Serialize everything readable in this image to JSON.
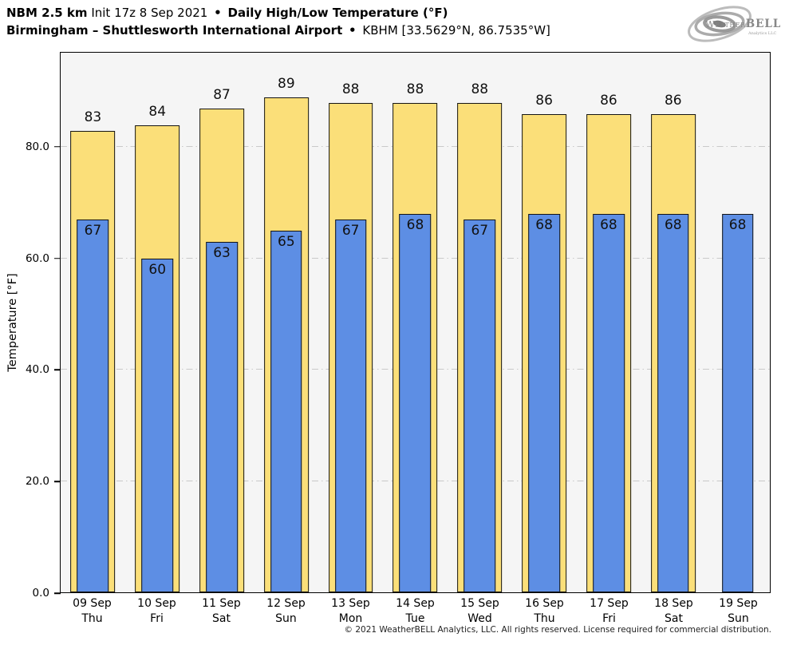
{
  "header": {
    "model": "NBM 2.5 km",
    "init": "Init 17z 8 Sep 2021",
    "separator": "•",
    "metric": "Daily High/Low Temperature (°F)",
    "location": "Birmingham – Shuttlesworth International Airport",
    "station": "KBHM [33.5629°N, 86.7535°W]"
  },
  "logo": {
    "brand_weather": "Weather",
    "brand_bell": "BELL",
    "subtext": "Analytics LLC"
  },
  "chart_data": {
    "type": "bar",
    "title": "NBM 2.5 km Init 17z 8 Sep 2021 • Daily High/Low Temperature (°F)",
    "subtitle": "Birmingham – Shuttlesworth International Airport • KBHM [33.5629°N, 86.7535°W]",
    "xlabel": "",
    "ylabel": "Temperature [°F]",
    "ylim": [
      0,
      97
    ],
    "y_ticks": [
      0,
      20,
      40,
      60,
      80
    ],
    "y_tick_labels": [
      "0.0",
      "20.0",
      "40.0",
      "60.0",
      "80.0"
    ],
    "grid": "dash-dot horizontal at major ticks",
    "legend": "none (values labeled on bars)",
    "categories": [
      {
        "date": "09 Sep",
        "day": "Thu"
      },
      {
        "date": "10 Sep",
        "day": "Fri"
      },
      {
        "date": "11 Sep",
        "day": "Sat"
      },
      {
        "date": "12 Sep",
        "day": "Sun"
      },
      {
        "date": "13 Sep",
        "day": "Mon"
      },
      {
        "date": "14 Sep",
        "day": "Tue"
      },
      {
        "date": "15 Sep",
        "day": "Wed"
      },
      {
        "date": "16 Sep",
        "day": "Thu"
      },
      {
        "date": "17 Sep",
        "day": "Fri"
      },
      {
        "date": "18 Sep",
        "day": "Sat"
      },
      {
        "date": "19 Sep",
        "day": "Sun"
      }
    ],
    "series": [
      {
        "name": "Daily High",
        "color": "#FBDF79",
        "values": [
          83,
          84,
          87,
          89,
          88,
          88,
          88,
          86,
          86,
          86,
          null
        ]
      },
      {
        "name": "Daily Low",
        "color": "#5D8EE4",
        "values": [
          67,
          60,
          63,
          65,
          67,
          68,
          67,
          68,
          68,
          68,
          68
        ]
      }
    ],
    "colors": {
      "plot_background": "#f5f5f5",
      "page_background": "#ffffff",
      "bar_border": "#141414",
      "gridline": "#c9c9c9"
    }
  },
  "footer": {
    "copyright": "© 2021 WeatherBELL Analytics, LLC. All rights reserved. License required for commercial distribution."
  }
}
